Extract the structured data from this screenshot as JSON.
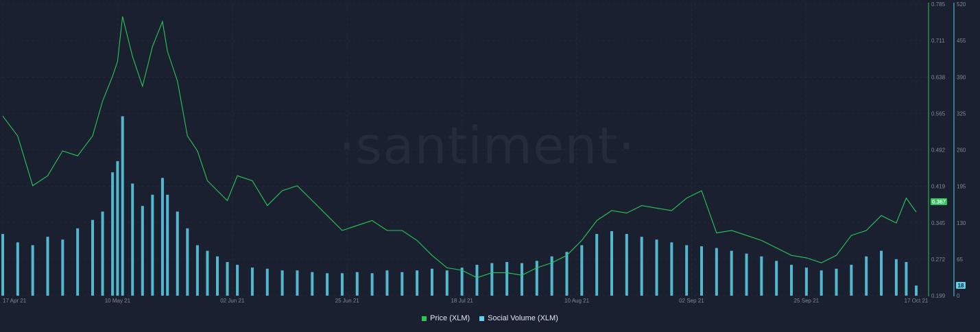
{
  "watermark": "·santiment·",
  "colors": {
    "price": "#26c953",
    "social": "#5ad3ec",
    "background": "#1b2030",
    "grid": "#2a3042"
  },
  "legend": [
    {
      "label": "Price (XLM)",
      "color": "#26c953"
    },
    {
      "label": "Social Volume (XLM)",
      "color": "#5ad3ec"
    }
  ],
  "badges": {
    "price": "0.367",
    "social": "18"
  },
  "chart_data": {
    "type": "line",
    "x_ticks": [
      "17 Apr 21",
      "10 May 21",
      "02 Jun 21",
      "25 Jun 21",
      "18 Jul 21",
      "10 Aug 21",
      "02 Sep 21",
      "25 Sep 21",
      "17 Oct 21"
    ],
    "y_left_ticks": [
      "0.785",
      "0.711",
      "0.638",
      "0.565",
      "0.492",
      "0.419",
      "0.345",
      "0.272",
      "0.199"
    ],
    "y_right_ticks": [
      "520",
      "455",
      "390",
      "325",
      "260",
      "195",
      "130",
      "65",
      "0"
    ],
    "y_left_range": [
      0.199,
      0.785
    ],
    "y_right_range": [
      0,
      520
    ],
    "grid": true,
    "series": [
      {
        "name": "Price (XLM)",
        "axis": "left",
        "style": "line",
        "points": [
          [
            "17 Apr 21",
            0.56
          ],
          [
            "20 Apr 21",
            0.52
          ],
          [
            "23 Apr 21",
            0.42
          ],
          [
            "26 Apr 21",
            0.44
          ],
          [
            "29 Apr 21",
            0.49
          ],
          [
            "02 May 21",
            0.48
          ],
          [
            "05 May 21",
            0.52
          ],
          [
            "07 May 21",
            0.59
          ],
          [
            "09 May 21",
            0.64
          ],
          [
            "10 May 21",
            0.67
          ],
          [
            "11 May 21",
            0.76
          ],
          [
            "13 May 21",
            0.68
          ],
          [
            "15 May 21",
            0.62
          ],
          [
            "17 May 21",
            0.7
          ],
          [
            "19 May 21",
            0.75
          ],
          [
            "20 May 21",
            0.69
          ],
          [
            "22 May 21",
            0.63
          ],
          [
            "24 May 21",
            0.52
          ],
          [
            "26 May 21",
            0.49
          ],
          [
            "28 May 21",
            0.43
          ],
          [
            "30 May 21",
            0.41
          ],
          [
            "01 Jun 21",
            0.39
          ],
          [
            "03 Jun 21",
            0.44
          ],
          [
            "06 Jun 21",
            0.43
          ],
          [
            "09 Jun 21",
            0.38
          ],
          [
            "12 Jun 21",
            0.41
          ],
          [
            "15 Jun 21",
            0.42
          ],
          [
            "18 Jun 21",
            0.39
          ],
          [
            "21 Jun 21",
            0.36
          ],
          [
            "24 Jun 21",
            0.33
          ],
          [
            "27 Jun 21",
            0.34
          ],
          [
            "30 Jun 21",
            0.35
          ],
          [
            "03 Jul 21",
            0.33
          ],
          [
            "06 Jul 21",
            0.33
          ],
          [
            "09 Jul 21",
            0.31
          ],
          [
            "12 Jul 21",
            0.28
          ],
          [
            "15 Jul 21",
            0.255
          ],
          [
            "18 Jul 21",
            0.25
          ],
          [
            "21 Jul 21",
            0.235
          ],
          [
            "24 Jul 21",
            0.245
          ],
          [
            "27 Jul 21",
            0.245
          ],
          [
            "30 Jul 21",
            0.24
          ],
          [
            "02 Aug 21",
            0.255
          ],
          [
            "05 Aug 21",
            0.265
          ],
          [
            "08 Aug 21",
            0.28
          ],
          [
            "11 Aug 21",
            0.31
          ],
          [
            "14 Aug 21",
            0.35
          ],
          [
            "17 Aug 21",
            0.37
          ],
          [
            "20 Aug 21",
            0.365
          ],
          [
            "23 Aug 21",
            0.38
          ],
          [
            "26 Aug 21",
            0.375
          ],
          [
            "29 Aug 21",
            0.37
          ],
          [
            "01 Sep 21",
            0.395
          ],
          [
            "04 Sep 21",
            0.41
          ],
          [
            "07 Sep 21",
            0.325
          ],
          [
            "10 Sep 21",
            0.33
          ],
          [
            "13 Sep 21",
            0.32
          ],
          [
            "16 Sep 21",
            0.31
          ],
          [
            "19 Sep 21",
            0.295
          ],
          [
            "22 Sep 21",
            0.28
          ],
          [
            "25 Sep 21",
            0.275
          ],
          [
            "28 Sep 21",
            0.265
          ],
          [
            "01 Oct 21",
            0.28
          ],
          [
            "04 Oct 21",
            0.32
          ],
          [
            "07 Oct 21",
            0.33
          ],
          [
            "10 Oct 21",
            0.36
          ],
          [
            "13 Oct 21",
            0.345
          ],
          [
            "15 Oct 21",
            0.395
          ],
          [
            "17 Oct 21",
            0.367
          ]
        ]
      },
      {
        "name": "Social Volume (XLM)",
        "axis": "right",
        "style": "bar",
        "points": [
          [
            "17 Apr 21",
            110
          ],
          [
            "20 Apr 21",
            95
          ],
          [
            "23 Apr 21",
            90
          ],
          [
            "26 Apr 21",
            105
          ],
          [
            "29 Apr 21",
            100
          ],
          [
            "02 May 21",
            120
          ],
          [
            "05 May 21",
            135
          ],
          [
            "07 May 21",
            150
          ],
          [
            "09 May 21",
            220
          ],
          [
            "10 May 21",
            240
          ],
          [
            "11 May 21",
            320
          ],
          [
            "13 May 21",
            200
          ],
          [
            "15 May 21",
            160
          ],
          [
            "17 May 21",
            180
          ],
          [
            "19 May 21",
            210
          ],
          [
            "20 May 21",
            180
          ],
          [
            "22 May 21",
            150
          ],
          [
            "24 May 21",
            120
          ],
          [
            "26 May 21",
            90
          ],
          [
            "28 May 21",
            80
          ],
          [
            "30 May 21",
            70
          ],
          [
            "01 Jun 21",
            60
          ],
          [
            "03 Jun 21",
            55
          ],
          [
            "06 Jun 21",
            50
          ],
          [
            "09 Jun 21",
            48
          ],
          [
            "12 Jun 21",
            45
          ],
          [
            "15 Jun 21",
            45
          ],
          [
            "18 Jun 21",
            42
          ],
          [
            "21 Jun 21",
            40
          ],
          [
            "24 Jun 21",
            40
          ],
          [
            "27 Jun 21",
            42
          ],
          [
            "30 Jun 21",
            40
          ],
          [
            "03 Jul 21",
            45
          ],
          [
            "06 Jul 21",
            42
          ],
          [
            "09 Jul 21",
            45
          ],
          [
            "12 Jul 21",
            48
          ],
          [
            "15 Jul 21",
            45
          ],
          [
            "18 Jul 21",
            50
          ],
          [
            "21 Jul 21",
            55
          ],
          [
            "24 Jul 21",
            58
          ],
          [
            "27 Jul 21",
            60
          ],
          [
            "30 Jul 21",
            58
          ],
          [
            "02 Aug 21",
            62
          ],
          [
            "05 Aug 21",
            70
          ],
          [
            "08 Aug 21",
            78
          ],
          [
            "11 Aug 21",
            90
          ],
          [
            "14 Aug 21",
            110
          ],
          [
            "17 Aug 21",
            115
          ],
          [
            "20 Aug 21",
            110
          ],
          [
            "23 Aug 21",
            105
          ],
          [
            "26 Aug 21",
            100
          ],
          [
            "29 Aug 21",
            95
          ],
          [
            "01 Sep 21",
            90
          ],
          [
            "04 Sep 21",
            88
          ],
          [
            "07 Sep 21",
            85
          ],
          [
            "10 Sep 21",
            80
          ],
          [
            "13 Sep 21",
            75
          ],
          [
            "16 Sep 21",
            70
          ],
          [
            "19 Sep 21",
            62
          ],
          [
            "22 Sep 21",
            55
          ],
          [
            "25 Sep 21",
            50
          ],
          [
            "28 Sep 21",
            45
          ],
          [
            "01 Oct 21",
            48
          ],
          [
            "04 Oct 21",
            55
          ],
          [
            "07 Oct 21",
            70
          ],
          [
            "10 Oct 21",
            80
          ],
          [
            "13 Oct 21",
            65
          ],
          [
            "15 Oct 21",
            60
          ],
          [
            "17 Oct 21",
            18
          ]
        ]
      }
    ]
  }
}
